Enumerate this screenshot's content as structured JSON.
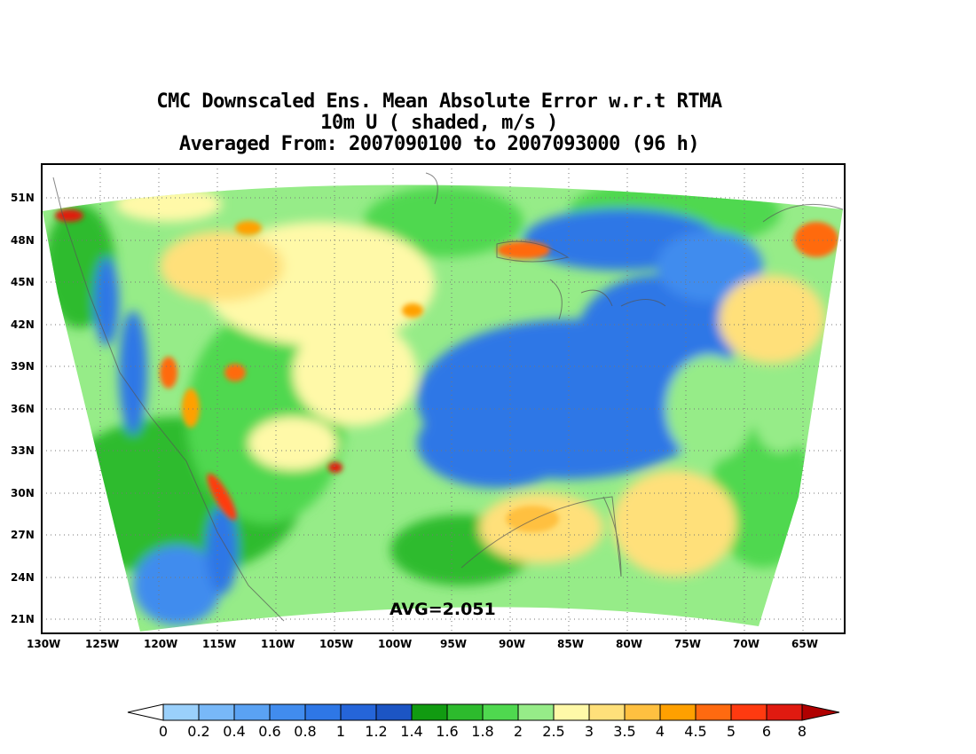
{
  "title": {
    "line1": "CMC Downscaled Ens. Mean Absolute Error w.r.t RTMA",
    "line2": "10m U ( shaded, m/s )",
    "line3": "Averaged From: 2007090100 to 2007093000 (96 h)"
  },
  "map": {
    "lat_labels": [
      "51N",
      "48N",
      "45N",
      "42N",
      "39N",
      "36N",
      "33N",
      "30N",
      "27N",
      "24N",
      "21N"
    ],
    "lon_labels": [
      "130W",
      "125W",
      "120W",
      "115W",
      "110W",
      "105W",
      "100W",
      "95W",
      "90W",
      "85W",
      "80W",
      "75W",
      "70W",
      "65W"
    ],
    "avg_label": "AVG=2.051",
    "grid": true
  },
  "colorbar": {
    "labels": [
      "0",
      "0.2",
      "0.4",
      "0.6",
      "0.8",
      "1",
      "1.2",
      "1.4",
      "1.6",
      "1.8",
      "2",
      "2.5",
      "3",
      "3.5",
      "4",
      "4.5",
      "5",
      "6",
      "8"
    ],
    "colors": [
      "#9ad0fb",
      "#78b8f8",
      "#5aa2f3",
      "#418cee",
      "#2e77e6",
      "#2565d9",
      "#1c55c4",
      "#119b11",
      "#2dbb2d",
      "#4fd84f",
      "#96ec88",
      "#fff9a8",
      "#ffe07a",
      "#ffc040",
      "#ffa000",
      "#ff6a10",
      "#ff3a10",
      "#e01a10",
      "#b00000"
    ]
  }
}
